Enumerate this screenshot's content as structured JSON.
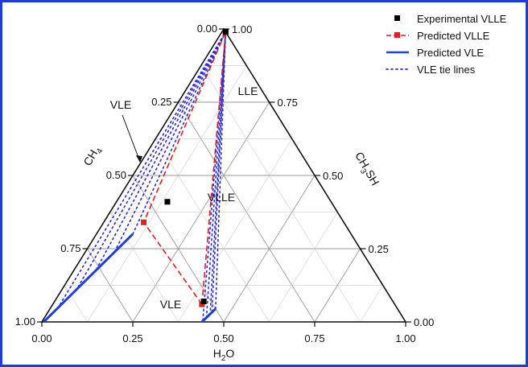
{
  "chart_data": {
    "type": "ternary",
    "axes": {
      "bottom": {
        "label_main": "H",
        "label_sub": "2",
        "label_tail": "O",
        "ticks": [
          "0.00",
          "0.25",
          "0.50",
          "0.75",
          "1.00"
        ]
      },
      "left": {
        "label_main": "CH",
        "label_sub": "4",
        "label_tail": "",
        "ticks": [
          "1.00",
          "0.75",
          "0.50",
          "0.25",
          "0.00"
        ]
      },
      "right": {
        "label_main": "CH",
        "label_sub": "3",
        "label_tail": "SH",
        "ticks": [
          "0.00",
          "0.25",
          "0.50",
          "0.75",
          "1.00"
        ]
      }
    },
    "grid": true,
    "legend_position": "top-right",
    "legend": [
      {
        "label": "Experimental VLLE",
        "style": "marker",
        "color": "#000000"
      },
      {
        "label": "Predicted VLLE",
        "style": "dashed-marker",
        "color": "#e02020"
      },
      {
        "label": "Predicted VLE",
        "style": "solid",
        "color": "#1f3fe0"
      },
      {
        "label": "VLE tie lines",
        "style": "dotted",
        "color": "#2a2ae0"
      }
    ],
    "region_labels": [
      "VLE",
      "LLE",
      "VLLE",
      "VLE"
    ],
    "experimental_vlle": [
      {
        "h2o": 0.41,
        "ch3sh": 0.07
      },
      {
        "h2o": 0.14,
        "ch3sh": 0.41
      },
      {
        "h2o": 0.01,
        "ch3sh": 0.99
      }
    ],
    "predicted_vlle_three_phase": [
      {
        "h2o": 0.41,
        "ch3sh": 0.06
      },
      {
        "h2o": 0.11,
        "ch3sh": 0.34
      },
      {
        "h2o": 0.01,
        "ch3sh": 0.99
      }
    ],
    "predicted_vle_left": [
      {
        "h2o": 0.005,
        "ch3sh": 0.0
      },
      {
        "h2o": 0.1,
        "ch3sh": 0.3
      }
    ],
    "predicted_vle_top": [
      {
        "h2o": 0.44,
        "ch3sh": 0.0
      },
      {
        "h2o": 0.455,
        "ch3sh": 0.045
      }
    ],
    "tie_lines_lower": [
      {
        "from": {
          "h2o": 0.1,
          "ch3sh": 0.3
        },
        "to": {
          "h2o": 0.01,
          "ch3sh": 0.99
        }
      },
      {
        "from": {
          "h2o": 0.08,
          "ch3sh": 0.24
        },
        "to": {
          "h2o": 0.01,
          "ch3sh": 0.99
        }
      },
      {
        "from": {
          "h2o": 0.06,
          "ch3sh": 0.18
        },
        "to": {
          "h2o": 0.01,
          "ch3sh": 0.99
        }
      },
      {
        "from": {
          "h2o": 0.04,
          "ch3sh": 0.12
        },
        "to": {
          "h2o": 0.01,
          "ch3sh": 0.99
        }
      },
      {
        "from": {
          "h2o": 0.02,
          "ch3sh": 0.06
        },
        "to": {
          "h2o": 0.01,
          "ch3sh": 0.99
        }
      }
    ],
    "tie_lines_upper": [
      {
        "from": {
          "h2o": 0.455,
          "ch3sh": 0.045
        },
        "to": {
          "h2o": 0.01,
          "ch3sh": 0.99
        }
      },
      {
        "from": {
          "h2o": 0.45,
          "ch3sh": 0.035
        },
        "to": {
          "h2o": 0.01,
          "ch3sh": 0.99
        }
      },
      {
        "from": {
          "h2o": 0.45,
          "ch3sh": 0.025
        },
        "to": {
          "h2o": 0.01,
          "ch3sh": 0.99
        }
      },
      {
        "from": {
          "h2o": 0.445,
          "ch3sh": 0.015
        },
        "to": {
          "h2o": 0.01,
          "ch3sh": 0.99
        }
      },
      {
        "from": {
          "h2o": 0.44,
          "ch3sh": 0.005
        },
        "to": {
          "h2o": 0.01,
          "ch3sh": 0.99
        }
      }
    ]
  }
}
